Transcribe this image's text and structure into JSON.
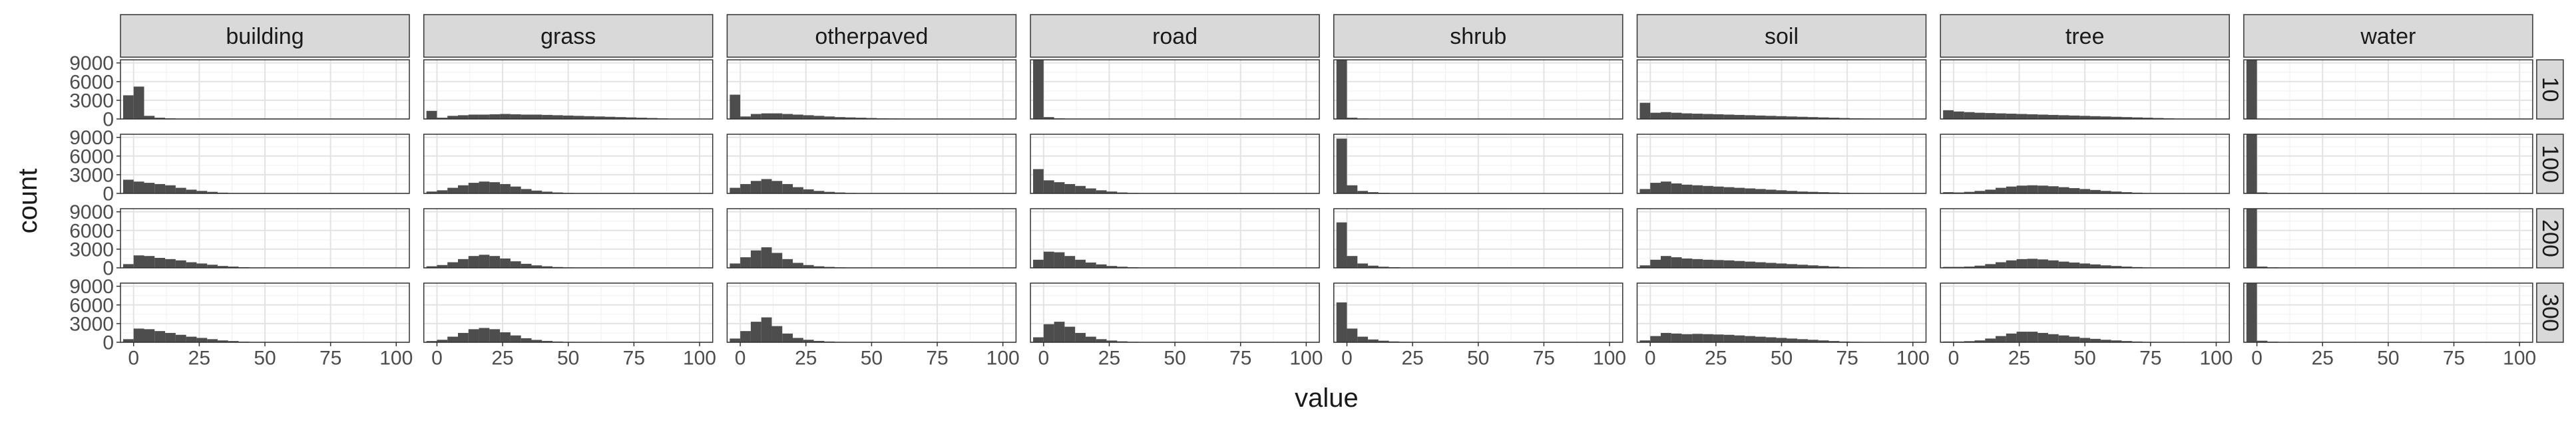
{
  "chart_data": {
    "type": "histogram-facet-grid",
    "xlabel": "value",
    "ylabel": "count",
    "xlim": [
      -5,
      105
    ],
    "ylim": [
      0,
      9500
    ],
    "x_ticks": [
      0,
      25,
      50,
      75,
      100
    ],
    "y_ticks": [
      0,
      3000,
      6000,
      9000
    ],
    "bin_width": 4,
    "bar_color": "#4d4d4d",
    "strip_color": "#d9d9d9",
    "grid": true,
    "columns": [
      "building",
      "grass",
      "otherpaved",
      "road",
      "shrub",
      "soil",
      "tree",
      "water"
    ],
    "rows": [
      "10",
      "100",
      "200",
      "300"
    ],
    "bin_centers": [
      -2,
      2,
      6,
      10,
      14,
      18,
      22,
      26,
      30,
      34,
      38,
      42,
      46,
      50,
      54,
      58,
      62,
      66,
      70,
      74,
      78,
      82,
      86,
      90,
      94,
      98
    ],
    "panels": {
      "building": [
        [
          3800,
          5200,
          500,
          200,
          100,
          50,
          0,
          0,
          0,
          0,
          0,
          0,
          0,
          0,
          0,
          0,
          0,
          0,
          0,
          0,
          0,
          0,
          0,
          0,
          0,
          0
        ],
        [
          2200,
          1900,
          1700,
          1500,
          1300,
          900,
          600,
          400,
          250,
          120,
          60,
          30,
          10,
          0,
          0,
          0,
          0,
          0,
          0,
          0,
          0,
          0,
          0,
          0,
          0,
          0
        ],
        [
          600,
          2000,
          1900,
          1600,
          1400,
          1200,
          900,
          700,
          500,
          300,
          200,
          100,
          50,
          20,
          0,
          0,
          0,
          0,
          0,
          0,
          0,
          0,
          0,
          0,
          0,
          0
        ],
        [
          500,
          2200,
          2100,
          1800,
          1500,
          1200,
          900,
          700,
          500,
          300,
          200,
          100,
          50,
          20,
          0,
          0,
          0,
          0,
          0,
          0,
          0,
          0,
          0,
          0,
          0,
          0
        ]
      ],
      "grass": [
        [
          1300,
          200,
          500,
          600,
          700,
          700,
          750,
          800,
          750,
          700,
          700,
          650,
          600,
          550,
          500,
          450,
          400,
          350,
          300,
          250,
          200,
          150,
          100,
          50,
          20,
          0
        ],
        [
          300,
          500,
          900,
          1300,
          1700,
          1900,
          1800,
          1500,
          1100,
          700,
          450,
          280,
          150,
          80,
          40,
          20,
          0,
          0,
          0,
          0,
          0,
          0,
          0,
          0,
          0,
          0
        ],
        [
          250,
          450,
          900,
          1400,
          1900,
          2100,
          1900,
          1500,
          1050,
          650,
          400,
          250,
          130,
          70,
          30,
          10,
          0,
          0,
          0,
          0,
          0,
          0,
          0,
          0,
          0,
          0
        ],
        [
          200,
          400,
          900,
          1500,
          2100,
          2300,
          2100,
          1600,
          1100,
          650,
          380,
          220,
          120,
          60,
          30,
          10,
          0,
          0,
          0,
          0,
          0,
          0,
          0,
          0,
          0,
          0
        ]
      ],
      "otherpaved": [
        [
          3900,
          400,
          800,
          900,
          900,
          800,
          700,
          600,
          500,
          400,
          300,
          250,
          200,
          150,
          100,
          80,
          60,
          40,
          30,
          20,
          10,
          0,
          0,
          0,
          0,
          0
        ],
        [
          900,
          1500,
          2000,
          2300,
          2000,
          1500,
          1000,
          650,
          400,
          250,
          150,
          80,
          40,
          20,
          0,
          0,
          0,
          0,
          0,
          0,
          0,
          0,
          0,
          0,
          0,
          0
        ],
        [
          700,
          1700,
          2800,
          3300,
          2400,
          1400,
          800,
          450,
          250,
          150,
          80,
          40,
          20,
          0,
          0,
          0,
          0,
          0,
          0,
          0,
          0,
          0,
          0,
          0,
          0,
          0
        ],
        [
          600,
          1800,
          3300,
          4000,
          2600,
          1400,
          700,
          400,
          220,
          120,
          60,
          30,
          10,
          0,
          0,
          0,
          0,
          0,
          0,
          0,
          0,
          0,
          0,
          0,
          0,
          0
        ]
      ],
      "road": [
        [
          9800,
          300,
          100,
          50,
          20,
          0,
          0,
          0,
          0,
          0,
          0,
          0,
          0,
          0,
          0,
          0,
          0,
          0,
          0,
          0,
          0,
          0,
          0,
          0,
          0,
          0
        ],
        [
          3900,
          2100,
          1800,
          1500,
          1200,
          800,
          500,
          300,
          150,
          80,
          40,
          20,
          0,
          0,
          0,
          0,
          0,
          0,
          0,
          0,
          0,
          0,
          0,
          0,
          0,
          0
        ],
        [
          1300,
          2600,
          2500,
          1900,
          1300,
          850,
          550,
          300,
          180,
          90,
          40,
          20,
          0,
          0,
          0,
          0,
          0,
          0,
          0,
          0,
          0,
          0,
          0,
          0,
          0,
          0
        ],
        [
          800,
          2900,
          3300,
          2500,
          1500,
          900,
          500,
          280,
          150,
          80,
          40,
          20,
          0,
          0,
          0,
          0,
          0,
          0,
          0,
          0,
          0,
          0,
          0,
          0,
          0,
          0
        ]
      ],
      "shrub": [
        [
          10200,
          200,
          80,
          30,
          10,
          0,
          0,
          0,
          0,
          0,
          0,
          0,
          0,
          0,
          0,
          0,
          0,
          0,
          0,
          0,
          0,
          0,
          0,
          0,
          0,
          0
        ],
        [
          8800,
          1300,
          400,
          200,
          100,
          50,
          20,
          10,
          0,
          0,
          0,
          0,
          0,
          0,
          0,
          0,
          0,
          0,
          0,
          0,
          0,
          0,
          0,
          0,
          0,
          0
        ],
        [
          7300,
          1900,
          700,
          350,
          180,
          100,
          50,
          20,
          10,
          0,
          0,
          0,
          0,
          0,
          0,
          0,
          0,
          0,
          0,
          0,
          0,
          0,
          0,
          0,
          0,
          0
        ],
        [
          6400,
          2200,
          900,
          450,
          250,
          130,
          70,
          30,
          15,
          0,
          0,
          0,
          0,
          0,
          0,
          0,
          0,
          0,
          0,
          0,
          0,
          0,
          0,
          0,
          0,
          0
        ]
      ],
      "soil": [
        [
          2600,
          1000,
          1100,
          1000,
          900,
          850,
          800,
          750,
          700,
          650,
          600,
          550,
          500,
          450,
          400,
          350,
          300,
          250,
          200,
          150,
          100,
          80,
          60,
          40,
          20,
          0
        ],
        [
          700,
          1700,
          1900,
          1600,
          1400,
          1300,
          1200,
          1100,
          1000,
          900,
          800,
          700,
          600,
          500,
          400,
          300,
          250,
          200,
          150,
          100,
          60,
          40,
          20,
          10,
          0,
          0
        ],
        [
          400,
          1300,
          1900,
          1700,
          1500,
          1400,
          1300,
          1250,
          1200,
          1100,
          1000,
          900,
          800,
          700,
          600,
          500,
          400,
          300,
          200,
          120,
          70,
          40,
          20,
          0,
          0,
          0
        ],
        [
          300,
          1000,
          1500,
          1400,
          1300,
          1350,
          1300,
          1250,
          1200,
          1100,
          1000,
          900,
          800,
          700,
          600,
          500,
          400,
          300,
          200,
          120,
          70,
          40,
          20,
          0,
          0,
          0
        ]
      ],
      "tree": [
        [
          1400,
          1200,
          1100,
          1000,
          950,
          900,
          850,
          800,
          750,
          700,
          650,
          600,
          550,
          500,
          450,
          400,
          350,
          300,
          250,
          200,
          150,
          100,
          50,
          20,
          0,
          0
        ],
        [
          200,
          150,
          250,
          400,
          600,
          900,
          1100,
          1250,
          1300,
          1250,
          1150,
          1000,
          850,
          700,
          550,
          400,
          300,
          200,
          120,
          60,
          30,
          10,
          0,
          0,
          0,
          0
        ],
        [
          150,
          150,
          200,
          350,
          600,
          900,
          1200,
          1400,
          1450,
          1350,
          1200,
          1000,
          850,
          700,
          550,
          400,
          300,
          200,
          120,
          60,
          30,
          10,
          0,
          0,
          0,
          0
        ],
        [
          120,
          120,
          180,
          300,
          600,
          1000,
          1400,
          1700,
          1700,
          1500,
          1300,
          1100,
          900,
          700,
          550,
          400,
          300,
          200,
          120,
          60,
          30,
          10,
          0,
          0,
          0,
          0
        ]
      ],
      "water": [
        [
          10300,
          60,
          20,
          0,
          0,
          0,
          0,
          0,
          0,
          0,
          0,
          0,
          0,
          0,
          0,
          0,
          0,
          0,
          0,
          0,
          0,
          0,
          0,
          0,
          0,
          0
        ],
        [
          10200,
          150,
          60,
          30,
          10,
          0,
          0,
          0,
          0,
          0,
          0,
          0,
          0,
          0,
          0,
          0,
          0,
          0,
          0,
          0,
          0,
          0,
          0,
          0,
          0,
          0
        ],
        [
          10100,
          200,
          80,
          40,
          20,
          10,
          0,
          0,
          0,
          0,
          0,
          0,
          0,
          0,
          0,
          0,
          0,
          0,
          0,
          0,
          0,
          0,
          0,
          0,
          0,
          0
        ],
        [
          10000,
          250,
          100,
          50,
          20,
          10,
          0,
          0,
          0,
          0,
          0,
          0,
          0,
          0,
          0,
          0,
          0,
          0,
          0,
          0,
          0,
          0,
          0,
          0,
          0,
          0
        ]
      ]
    }
  }
}
